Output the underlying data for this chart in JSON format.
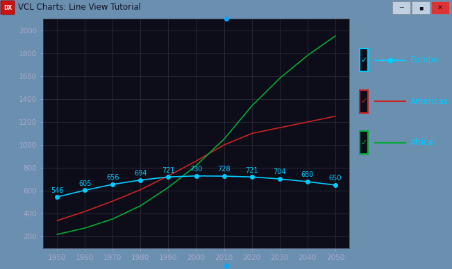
{
  "years": [
    1950,
    1960,
    1970,
    1980,
    1990,
    2000,
    2010,
    2020,
    2030,
    2040,
    2050
  ],
  "europe": [
    546,
    605,
    656,
    694,
    721,
    730,
    728,
    721,
    704,
    680,
    650
  ],
  "americas": [
    340,
    420,
    510,
    610,
    730,
    860,
    1000,
    1100,
    1150,
    1200,
    1250
  ],
  "africa": [
    220,
    275,
    355,
    470,
    630,
    820,
    1050,
    1340,
    1580,
    1780,
    1950
  ],
  "europe_color": "#00ccff",
  "americas_color": "#cc2222",
  "africa_color": "#00aa33",
  "plot_bg": "#0d0d1a",
  "grid_color": "#2a2a3a",
  "label_color": "#aaaacc",
  "value_label_color": "#00ccff",
  "title": "VCL Charts: Line View Tutorial",
  "ylim": [
    100,
    2100
  ],
  "xlim": [
    1945,
    2055
  ],
  "yticks": [
    200,
    400,
    600,
    800,
    1000,
    1200,
    1400,
    1600,
    1800,
    2000
  ],
  "xticks": [
    1950,
    1960,
    1970,
    1980,
    1990,
    2000,
    2010,
    2020,
    2030,
    2040,
    2050
  ],
  "window_bg": "#6a8faf",
  "titlebar_bg": "#6a8faf",
  "legend_bg": "#0d0d1a",
  "side_handle_color": "#00aaff",
  "top_dot_color": "#00aaff"
}
